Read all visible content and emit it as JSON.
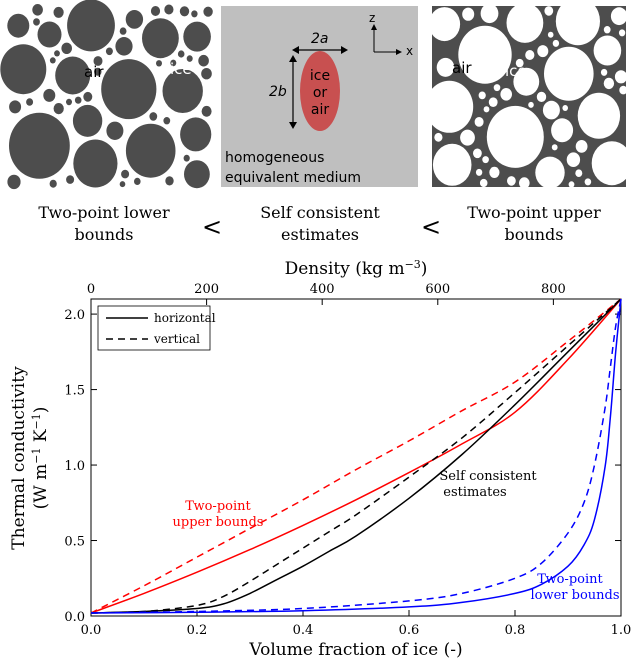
{
  "schematic": {
    "left_panel": {
      "air_label": "air",
      "ice_label": "ice"
    },
    "middle_panel": {
      "axis_z": "z",
      "axis_x": "x",
      "dim_2a": "2a",
      "dim_2b": "2b",
      "inclusion_line1": "ice",
      "inclusion_line2": "or",
      "inclusion_line3": "air",
      "medium_line1": "homogeneous",
      "medium_line2": "equivalent medium"
    },
    "right_panel": {
      "air_label": "air",
      "ice_label": "ice"
    },
    "captions": {
      "lower_line1": "Two-point lower",
      "lower_line2": "bounds",
      "self_line1": "Self consistent",
      "self_line2": "estimates",
      "upper_line1": "Two-point upper",
      "upper_line2": "bounds",
      "less_than": "<"
    },
    "colors": {
      "panel_gray": "#bfbfbf",
      "dark_gray": "#4d4d4d",
      "inclusion_red": "#c85050"
    }
  },
  "chart_data": {
    "type": "line",
    "xlabel": "Volume fraction of ice (-)",
    "xlim": [
      0,
      1
    ],
    "x_ticks": [
      0.0,
      0.2,
      0.4,
      0.6,
      0.8,
      1.0
    ],
    "x_tick_labels": [
      "0.0",
      "0.2",
      "0.4",
      "0.6",
      "0.8",
      "1.0"
    ],
    "top_xlabel": "Density (kg m",
    "top_xlabel_exp": "−3",
    "top_xlabel_close": ")",
    "top_ticks": [
      0,
      200,
      400,
      600,
      800
    ],
    "top_tick_labels": [
      "0",
      "200",
      "400",
      "600",
      "800"
    ],
    "top_axis_max_density": 917,
    "ylabel_line1": "Thermal conductivity",
    "ylabel_line2": "(W m",
    "ylabel_exp1": "−1",
    "ylabel_mid": " K",
    "ylabel_exp2": "−1",
    "ylabel_close": ")",
    "ylim": [
      0,
      2.1
    ],
    "y_ticks": [
      0.0,
      0.5,
      1.0,
      1.5,
      2.0
    ],
    "y_tick_labels": [
      "0.0",
      "0.5",
      "1.0",
      "1.5",
      "2.0"
    ],
    "legend": {
      "position": "upper-left",
      "entries": [
        {
          "label": "horizontal",
          "style": "solid"
        },
        {
          "label": "vertical",
          "style": "dashed"
        }
      ]
    },
    "annotations": {
      "upper_line1": "Two-point",
      "upper_line2": "upper bounds",
      "self_line1": "Self consistent",
      "self_line2": "estimates",
      "lower_line1": "Two-point",
      "lower_line2": "lower bounds"
    },
    "series": [
      {
        "group": "upper",
        "style": "solid",
        "color": "#ff0000",
        "x": [
          0,
          0.1,
          0.2,
          0.3,
          0.4,
          0.5,
          0.6,
          0.7,
          0.8,
          0.9,
          1.0
        ],
        "y": [
          0.02,
          0.15,
          0.29,
          0.44,
          0.6,
          0.77,
          0.95,
          1.14,
          1.35,
          1.7,
          2.1
        ]
      },
      {
        "group": "upper",
        "style": "dashed",
        "color": "#ff0000",
        "x": [
          0,
          0.1,
          0.2,
          0.3,
          0.4,
          0.5,
          0.6,
          0.7,
          0.8,
          0.9,
          1.0
        ],
        "y": [
          0.02,
          0.2,
          0.39,
          0.58,
          0.77,
          0.97,
          1.16,
          1.36,
          1.55,
          1.82,
          2.1
        ]
      },
      {
        "group": "self",
        "style": "solid",
        "color": "#000000",
        "x": [
          0,
          0.1,
          0.2,
          0.25,
          0.3,
          0.35,
          0.4,
          0.45,
          0.5,
          0.6,
          0.7,
          0.8,
          0.9,
          1.0
        ],
        "y": [
          0.02,
          0.03,
          0.05,
          0.08,
          0.15,
          0.24,
          0.33,
          0.43,
          0.53,
          0.78,
          1.07,
          1.4,
          1.75,
          2.1
        ]
      },
      {
        "group": "self",
        "style": "dashed",
        "color": "#000000",
        "x": [
          0,
          0.1,
          0.2,
          0.25,
          0.3,
          0.35,
          0.4,
          0.45,
          0.5,
          0.6,
          0.7,
          0.8,
          0.9,
          1.0
        ],
        "y": [
          0.02,
          0.03,
          0.07,
          0.13,
          0.23,
          0.34,
          0.45,
          0.56,
          0.67,
          0.92,
          1.18,
          1.48,
          1.79,
          2.1
        ]
      },
      {
        "group": "lower",
        "style": "solid",
        "color": "#0000ff",
        "x": [
          0,
          0.2,
          0.4,
          0.6,
          0.7,
          0.8,
          0.85,
          0.9,
          0.93,
          0.95,
          0.97,
          0.98,
          0.99,
          1.0
        ],
        "y": [
          0.02,
          0.025,
          0.035,
          0.06,
          0.09,
          0.15,
          0.21,
          0.33,
          0.47,
          0.64,
          0.99,
          1.32,
          1.75,
          2.1
        ]
      },
      {
        "group": "lower",
        "style": "dashed",
        "color": "#0000ff",
        "x": [
          0,
          0.2,
          0.4,
          0.6,
          0.7,
          0.8,
          0.85,
          0.9,
          0.93,
          0.95,
          0.97,
          0.98,
          0.99,
          1.0
        ],
        "y": [
          0.02,
          0.03,
          0.05,
          0.1,
          0.15,
          0.25,
          0.35,
          0.55,
          0.75,
          1.0,
          1.38,
          1.65,
          1.92,
          2.1
        ]
      }
    ]
  }
}
